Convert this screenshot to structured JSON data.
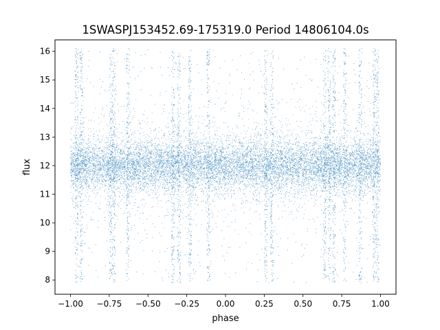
{
  "chart_data": {
    "type": "scatter",
    "title": "1SWASPJ153452.69-175319.0 Period 14806104.0s",
    "xlabel": "phase",
    "ylabel": "flux",
    "xlim": [
      -1.1,
      1.1
    ],
    "ylim": [
      7.5,
      16.4
    ],
    "xticks": [
      -1.0,
      -0.75,
      -0.5,
      -0.25,
      0.0,
      0.25,
      0.5,
      0.75,
      1.0
    ],
    "xtick_labels": [
      "−1.00",
      "−0.75",
      "−0.50",
      "−0.25",
      "0.00",
      "0.25",
      "0.50",
      "0.75",
      "1.00"
    ],
    "yticks": [
      8,
      9,
      10,
      11,
      12,
      13,
      14,
      15,
      16
    ],
    "ytick_labels": [
      "8",
      "9",
      "10",
      "11",
      "12",
      "13",
      "14",
      "15",
      "16"
    ],
    "grid": false,
    "series": [
      {
        "color": "#1f77b4",
        "x_range": [
          -1.0,
          1.0
        ],
        "y_center": 12.0,
        "core_band": [
          11.3,
          12.7
        ],
        "y_extent": [
          7.9,
          16.1
        ],
        "dense_streak_phases": [
          -0.96,
          -0.93,
          -0.74,
          -0.72,
          -0.63,
          -0.34,
          -0.3,
          -0.23,
          -0.11,
          0.26,
          0.3,
          0.64,
          0.67,
          0.7,
          0.77,
          0.87,
          0.96,
          0.98
        ]
      }
    ]
  }
}
